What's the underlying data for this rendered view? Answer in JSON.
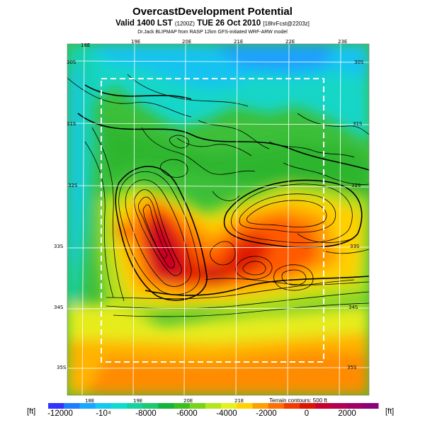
{
  "header": {
    "title": "OvercastDevelopment Potential",
    "valid_line": "Valid 1400 LST",
    "valid_code": "(1200Z)",
    "date_line": "TUE 26 Oct 2010",
    "forecast_code": "[18hrFcst@2203z]",
    "source_line": "Dr.Jack BLIPMAP from RASP 12km GFS-initiated WRF-ARW model"
  },
  "map": {
    "lon_labels_top": [
      "18E",
      "19E",
      "20E",
      "21E",
      "22E",
      "23E"
    ],
    "lon_labels_bottom": [
      "18E",
      "19E",
      "20E",
      "21E"
    ],
    "lat_labels_left": [
      "30S",
      "31S",
      "32S",
      "33S",
      "34S",
      "35S"
    ],
    "lat_labels_right": [
      "30S",
      "31S",
      "32S",
      "33S",
      "34S",
      "35S"
    ],
    "terrain_note": "Terrain contours: 500 ft"
  },
  "colorbar": {
    "unit_left": "[ft]",
    "unit_right": "[ft]",
    "ticks": [
      "-12000",
      "-10⁴",
      "-8000",
      "-6000",
      "-4000",
      "-2000",
      "0",
      "2000"
    ],
    "colors": [
      "#3333ff",
      "#1e7dff",
      "#18a8ff",
      "#14c8f0",
      "#0fdcd0",
      "#14d2a0",
      "#1ec86e",
      "#14b43c",
      "#3cbe1e",
      "#78d21e",
      "#b4e61e",
      "#e6f01e",
      "#ffd200",
      "#ffa000",
      "#ff6e00",
      "#f03c00",
      "#dc1400",
      "#c80032",
      "#b40050",
      "#a00064",
      "#8c0078"
    ]
  }
}
